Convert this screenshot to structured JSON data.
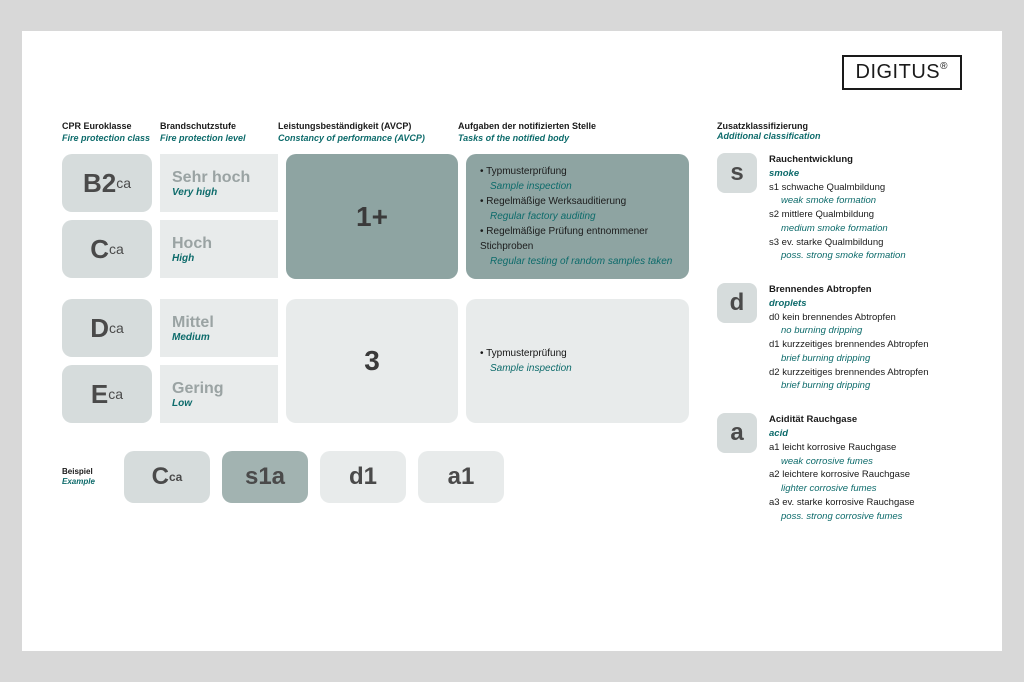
{
  "logo": "DIGITUS",
  "columns": {
    "class": {
      "de": "CPR Euroklasse",
      "en": "Fire protection class"
    },
    "level": {
      "de": "Brandschutzstufe",
      "en": "Fire protection level"
    },
    "avcp": {
      "de": "Leistungsbeständigkeit (AVCP)",
      "en": "Constancy of performance (AVCP)"
    },
    "tasks": {
      "de": "Aufgaben der notifizierten Stelle",
      "en": "Tasks of the notified body"
    }
  },
  "groups": [
    {
      "avcp": "1+",
      "style": "dark",
      "rows": [
        {
          "class_main": "B2",
          "class_sub": "ca",
          "level_de": "Sehr hoch",
          "level_en": "Very high"
        },
        {
          "class_main": "C",
          "class_sub": "ca",
          "level_de": "Hoch",
          "level_en": "High"
        }
      ],
      "tasks": [
        {
          "de": "Typmusterprüfung",
          "en": "Sample inspection"
        },
        {
          "de": "Regelmäßige Werksauditierung",
          "en": "Regular factory auditing"
        },
        {
          "de": "Regelmäßige Prüfung entnommener Stichproben",
          "en": "Regular testing of random samples taken"
        }
      ]
    },
    {
      "avcp": "3",
      "style": "light",
      "rows": [
        {
          "class_main": "D",
          "class_sub": "ca",
          "level_de": "Mittel",
          "level_en": "Medium"
        },
        {
          "class_main": "E",
          "class_sub": "ca",
          "level_de": "Gering",
          "level_en": "Low"
        }
      ],
      "tasks": [
        {
          "de": "Typmusterprüfung",
          "en": "Sample inspection"
        }
      ]
    }
  ],
  "example": {
    "label_de": "Beispiel",
    "label_en": "Example",
    "boxes": [
      {
        "text_main": "C",
        "text_sub": "ca",
        "cls": "ex-grey"
      },
      {
        "text_main": "s1a",
        "text_sub": "",
        "cls": "ex-dark"
      },
      {
        "text_main": "d1",
        "text_sub": "",
        "cls": "ex-light"
      },
      {
        "text_main": "a1",
        "text_sub": "",
        "cls": "ex-light"
      }
    ]
  },
  "side": {
    "header": {
      "de": "Zusatzklassifizierung",
      "en": "Additional classification"
    },
    "groups": [
      {
        "icon": "s",
        "title": {
          "de": "Rauchentwicklung",
          "en": "smoke"
        },
        "items": [
          {
            "de": "s1 schwache Qualmbildung",
            "en": "weak smoke formation"
          },
          {
            "de": "s2 mittlere Qualmbildung",
            "en": "medium smoke formation"
          },
          {
            "de": "s3 ev. starke Qualmbildung",
            "en": "poss. strong smoke formation"
          }
        ]
      },
      {
        "icon": "d",
        "title": {
          "de": "Brennendes Abtropfen",
          "en": "droplets"
        },
        "items": [
          {
            "de": "d0 kein brennendes Abtropfen",
            "en": "no burning dripping"
          },
          {
            "de": "d1 kurzzeitiges brennendes Abtropfen",
            "en": "brief burning dripping"
          },
          {
            "de": "d2 kurzzeitiges brennendes Abtropfen",
            "en": "brief burning dripping"
          }
        ]
      },
      {
        "icon": "a",
        "title": {
          "de": "Acidität Rauchgase",
          "en": "acid"
        },
        "items": [
          {
            "de": "a1 leicht korrosive Rauchgase",
            "en": "weak corrosive fumes"
          },
          {
            "de": "a2 leichtere korrosive Rauchgase",
            "en": "lighter corrosive fumes"
          },
          {
            "de": "a3 ev. starke korrosive Rauchgase",
            "en": "poss. strong corrosive fumes"
          }
        ]
      }
    ]
  },
  "colors": {
    "page_bg": "#ffffff",
    "outer_bg": "#d8d8d8",
    "teal": "#0d6b6b",
    "dark_box": "#8ea4a2",
    "light_box": "#e8ebeb",
    "grey_box": "#d6dcdc",
    "text": "#1a1a1a",
    "muted": "#9aa3a3"
  }
}
